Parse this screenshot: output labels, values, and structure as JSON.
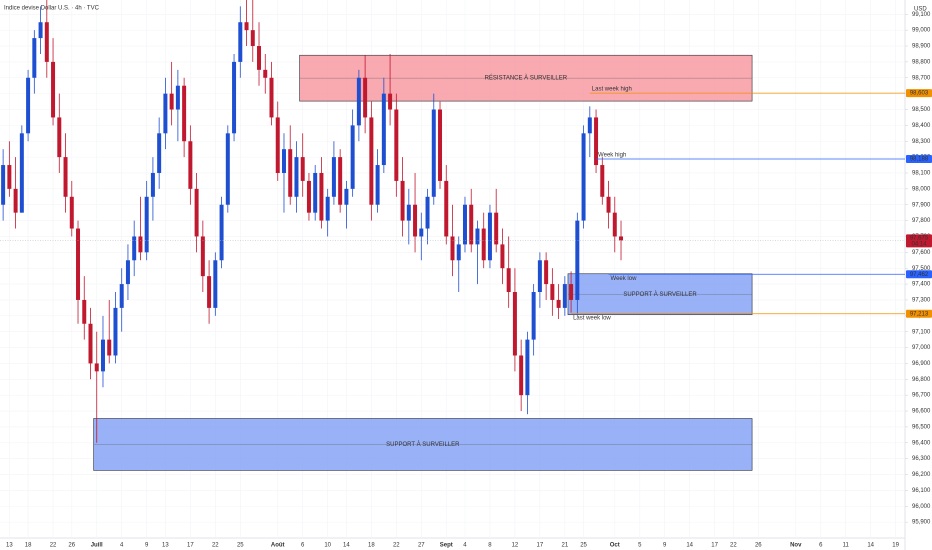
{
  "chart_data": {
    "type": "candlestick",
    "title": "Indice devise Dollar U.S. · 4h · TVC",
    "currency": "USD",
    "up_color": "#1f4fd1",
    "down_color": "#c0182f",
    "grid": true,
    "ylim": [
      95.8,
      99.19
    ],
    "yticks": [
      {
        "value": 95.9,
        "label": "95,900"
      },
      {
        "value": 96.0,
        "label": "96,000"
      },
      {
        "value": 96.1,
        "label": "96,100"
      },
      {
        "value": 96.2,
        "label": "96,200"
      },
      {
        "value": 96.3,
        "label": "96,300"
      },
      {
        "value": 96.4,
        "label": "96,400"
      },
      {
        "value": 96.5,
        "label": "96,500"
      },
      {
        "value": 96.6,
        "label": "96,600"
      },
      {
        "value": 96.7,
        "label": "96,700"
      },
      {
        "value": 96.8,
        "label": "96,800"
      },
      {
        "value": 96.9,
        "label": "96,900"
      },
      {
        "value": 97.0,
        "label": "97,000"
      },
      {
        "value": 97.1,
        "label": "97,100"
      },
      {
        "value": 97.2,
        "label": "97,200"
      },
      {
        "value": 97.3,
        "label": "97,300"
      },
      {
        "value": 97.4,
        "label": "97,400"
      },
      {
        "value": 97.5,
        "label": "97,500"
      },
      {
        "value": 97.6,
        "label": "97,600"
      },
      {
        "value": 97.7,
        "label": "97,700"
      },
      {
        "value": 97.8,
        "label": "97,800"
      },
      {
        "value": 97.9,
        "label": "97,900"
      },
      {
        "value": 98.0,
        "label": "98,000"
      },
      {
        "value": 98.1,
        "label": "98,100"
      },
      {
        "value": 98.2,
        "label": "98,200"
      },
      {
        "value": 98.3,
        "label": "98,300"
      },
      {
        "value": 98.4,
        "label": "98,400"
      },
      {
        "value": 98.5,
        "label": "98,500"
      },
      {
        "value": 98.6,
        "label": "98,600"
      },
      {
        "value": 98.7,
        "label": "98,700"
      },
      {
        "value": 98.8,
        "label": "98,800"
      },
      {
        "value": 98.9,
        "label": "98,900"
      },
      {
        "value": 99.0,
        "label": "99,000"
      },
      {
        "value": 99.1,
        "label": "99,100"
      }
    ],
    "categories": [
      null,
      "13",
      null,
      null,
      "18",
      null,
      null,
      null,
      "22",
      null,
      null,
      "26",
      null,
      null,
      null,
      "Juill",
      null,
      null,
      null,
      "4",
      null,
      null,
      null,
      "9",
      null,
      null,
      "13",
      null,
      null,
      null,
      "17",
      null,
      null,
      null,
      "22",
      null,
      null,
      null,
      "25",
      null,
      null,
      null,
      null,
      null,
      "Août",
      null,
      null,
      null,
      "6",
      null,
      null,
      null,
      "10",
      null,
      null,
      "14",
      null,
      null,
      null,
      "18",
      null,
      null,
      null,
      "22",
      null,
      null,
      null,
      "27",
      null,
      null,
      null,
      "Sept",
      null,
      null,
      "4",
      null,
      null,
      null,
      "8",
      null,
      null,
      null,
      "12",
      null,
      null,
      null,
      "17",
      null,
      null,
      null,
      "21",
      null,
      null,
      "25",
      null,
      null,
      null,
      null,
      "Oct",
      null,
      null,
      null,
      "5",
      null,
      null,
      null,
      "9",
      null,
      null,
      null,
      "14",
      null,
      null,
      null,
      "17",
      null,
      null,
      "22",
      null,
      null,
      null,
      "26",
      null,
      null,
      null,
      null,
      null,
      "Nov",
      null,
      null,
      null,
      "6",
      null,
      null,
      null,
      "11",
      null,
      null,
      null,
      "14",
      null,
      null,
      null,
      "19",
      null
    ],
    "open": [
      97.9,
      98.15,
      98.0,
      97.85,
      98.35,
      98.7,
      98.95,
      99.05,
      98.8,
      98.45,
      98.2,
      97.95,
      97.75,
      97.3,
      97.15,
      96.9,
      96.85,
      97.05,
      96.95,
      97.25,
      97.4,
      97.55,
      97.7,
      97.6,
      97.95,
      98.1,
      98.35,
      98.6,
      98.5,
      98.65,
      98.3,
      98.0,
      97.7,
      97.45,
      97.25,
      97.55,
      97.9,
      98.35,
      98.8,
      99.05,
      99.0,
      98.9,
      98.75,
      98.7,
      98.45,
      98.1,
      98.25,
      97.95,
      98.2,
      98.05,
      97.85,
      98.1,
      97.8,
      97.95,
      98.2,
      97.9,
      98.0,
      98.4,
      98.7,
      98.45,
      97.9,
      98.15,
      98.6,
      98.5,
      98.05,
      97.8,
      97.9,
      97.7,
      97.75,
      97.95,
      98.5,
      98.05,
      97.7,
      97.55,
      97.65,
      97.9,
      97.65,
      97.75,
      97.55,
      97.85,
      97.65,
      97.5,
      97.35,
      96.95,
      96.7,
      97.05,
      97.35,
      97.55,
      97.4,
      97.3,
      97.25,
      97.4,
      97.3,
      97.8,
      98.35,
      98.45,
      98.15,
      97.95,
      97.85,
      97.7,
      null,
      null,
      null,
      null,
      null,
      null,
      null,
      null,
      null,
      null,
      null,
      null,
      null,
      null,
      null,
      null,
      null,
      null,
      null,
      null,
      null,
      null,
      null,
      null,
      null,
      null,
      null,
      null,
      null,
      null,
      null,
      null,
      null,
      null,
      null,
      null,
      null,
      null,
      null,
      null,
      null,
      null,
      null,
      null,
      null
    ],
    "high": [
      98.25,
      98.3,
      98.2,
      98.4,
      98.75,
      99.0,
      99.15,
      99.19,
      98.95,
      98.6,
      98.35,
      98.05,
      97.8,
      97.45,
      97.25,
      97.1,
      97.2,
      97.3,
      97.35,
      97.5,
      97.65,
      97.8,
      97.95,
      98.05,
      98.2,
      98.45,
      98.7,
      98.8,
      98.75,
      98.7,
      98.4,
      98.1,
      97.8,
      97.55,
      97.6,
      97.95,
      98.4,
      98.85,
      99.15,
      99.19,
      99.19,
      99.05,
      98.85,
      98.8,
      98.55,
      98.35,
      98.4,
      98.3,
      98.35,
      98.1,
      98.15,
      98.2,
      98.0,
      98.3,
      98.25,
      98.05,
      98.5,
      98.75,
      98.84,
      98.55,
      98.25,
      98.7,
      98.85,
      98.6,
      98.2,
      98.0,
      98.1,
      97.85,
      98.0,
      98.6,
      98.55,
      98.15,
      97.9,
      97.7,
      97.95,
      98.0,
      97.8,
      97.85,
      97.9,
      98.0,
      97.75,
      97.7,
      97.5,
      97.05,
      97.1,
      97.4,
      97.6,
      97.6,
      97.5,
      97.4,
      97.45,
      97.48,
      97.85,
      98.4,
      98.52,
      98.5,
      98.2,
      98.05,
      97.95,
      97.8,
      null,
      null,
      null,
      null,
      null,
      null,
      null,
      null,
      null,
      null,
      null,
      null,
      null,
      null,
      null,
      null,
      null,
      null,
      null,
      null,
      null,
      null,
      null,
      null,
      null,
      null,
      null,
      null,
      null,
      null,
      null,
      null,
      null,
      null,
      null,
      null,
      null,
      null,
      null,
      null,
      null,
      null,
      null,
      null,
      null
    ],
    "low": [
      97.8,
      97.95,
      97.75,
      97.85,
      98.3,
      98.6,
      98.85,
      98.7,
      98.4,
      98.1,
      97.85,
      97.7,
      97.15,
      97.05,
      96.8,
      96.4,
      96.75,
      96.9,
      96.9,
      97.1,
      97.3,
      97.45,
      97.55,
      97.55,
      97.8,
      98.0,
      98.25,
      98.4,
      98.3,
      98.2,
      97.9,
      97.6,
      97.35,
      97.15,
      97.2,
      97.5,
      97.85,
      98.3,
      98.7,
      98.9,
      98.8,
      98.65,
      98.6,
      98.4,
      98.05,
      97.85,
      97.9,
      97.85,
      97.95,
      97.8,
      97.8,
      97.75,
      97.7,
      97.9,
      97.85,
      97.75,
      97.95,
      98.3,
      98.35,
      97.8,
      97.85,
      98.1,
      98.4,
      97.95,
      97.7,
      97.65,
      97.6,
      97.55,
      97.65,
      97.9,
      98.0,
      97.65,
      97.45,
      97.35,
      97.6,
      97.6,
      97.4,
      97.5,
      97.5,
      97.6,
      97.4,
      97.25,
      96.85,
      96.6,
      96.58,
      96.95,
      97.25,
      97.3,
      97.2,
      97.18,
      97.2,
      97.22,
      97.2,
      97.75,
      98.2,
      98.1,
      97.9,
      97.75,
      97.6,
      97.55,
      null,
      null,
      null,
      null,
      null,
      null,
      null,
      null,
      null,
      null,
      null,
      null,
      null,
      null,
      null,
      null,
      null,
      null,
      null,
      null,
      null,
      null,
      null,
      null,
      null,
      null,
      null,
      null,
      null,
      null,
      null,
      null,
      null,
      null,
      null,
      null,
      null,
      null,
      null,
      null,
      null,
      null,
      null,
      null,
      null
    ],
    "close": [
      98.15,
      98.0,
      97.85,
      98.35,
      98.7,
      98.95,
      99.05,
      98.8,
      98.45,
      98.2,
      97.95,
      97.75,
      97.3,
      97.15,
      96.9,
      96.85,
      97.05,
      96.95,
      97.25,
      97.4,
      97.55,
      97.7,
      97.6,
      97.95,
      98.1,
      98.35,
      98.6,
      98.5,
      98.65,
      98.3,
      98.0,
      97.7,
      97.45,
      97.25,
      97.55,
      97.9,
      98.35,
      98.8,
      99.05,
      99.0,
      98.9,
      98.75,
      98.7,
      98.45,
      98.1,
      98.25,
      97.95,
      98.2,
      98.05,
      97.85,
      98.1,
      97.8,
      97.95,
      98.2,
      97.9,
      98.0,
      98.4,
      98.7,
      98.45,
      97.9,
      98.15,
      98.6,
      98.5,
      98.05,
      97.8,
      97.9,
      97.7,
      97.75,
      97.95,
      98.5,
      98.05,
      97.7,
      97.55,
      97.65,
      97.9,
      97.65,
      97.75,
      97.55,
      97.85,
      97.65,
      97.5,
      97.35,
      96.95,
      96.7,
      97.05,
      97.35,
      97.55,
      97.4,
      97.3,
      97.25,
      97.4,
      97.3,
      97.8,
      98.35,
      98.45,
      98.15,
      97.95,
      97.85,
      97.7,
      97.675,
      null,
      null,
      null,
      null,
      null,
      null,
      null,
      null,
      null,
      null,
      null,
      null,
      null,
      null,
      null,
      null,
      null,
      null,
      null,
      null,
      null,
      null,
      null,
      null,
      null,
      null,
      null,
      null,
      null,
      null,
      null,
      null,
      null,
      null,
      null,
      null,
      null,
      null,
      null,
      null,
      null,
      null,
      null,
      null,
      null
    ],
    "zones": [
      {
        "label": "RÉSISTANCE À SURVEILLER",
        "top": 98.842,
        "bottom": 98.553,
        "start": 48,
        "end": 120,
        "color": "#f7939c"
      },
      {
        "label": "SUPPORT À SURVEILLER",
        "top": 97.465,
        "bottom": 97.207,
        "start": 91,
        "end": 120,
        "color": "#7f9ef5"
      },
      {
        "label": "SUPPORT À SURVEILLER",
        "top": 96.553,
        "bottom": 96.226,
        "start": 15,
        "end": 120,
        "color": "#7f9ef5"
      }
    ],
    "levels": [
      {
        "name": "Last week high",
        "value": 98.603,
        "label": "98,603",
        "start": 94,
        "color": "#f29100"
      },
      {
        "name": "Week high",
        "value": 98.188,
        "label": "98,188",
        "start": 95,
        "color": "#2962ff"
      },
      {
        "name": "Week low",
        "value": 97.462,
        "label": "97,462",
        "start": 97,
        "color": "#2962ff"
      },
      {
        "name": "Last week low",
        "value": 97.213,
        "label": "97,213",
        "start": 91,
        "color": "#f29100"
      }
    ],
    "current_price": {
      "value": 97.675,
      "label": "97,675",
      "countdown": "04:14",
      "color": "#c0182f"
    }
  }
}
